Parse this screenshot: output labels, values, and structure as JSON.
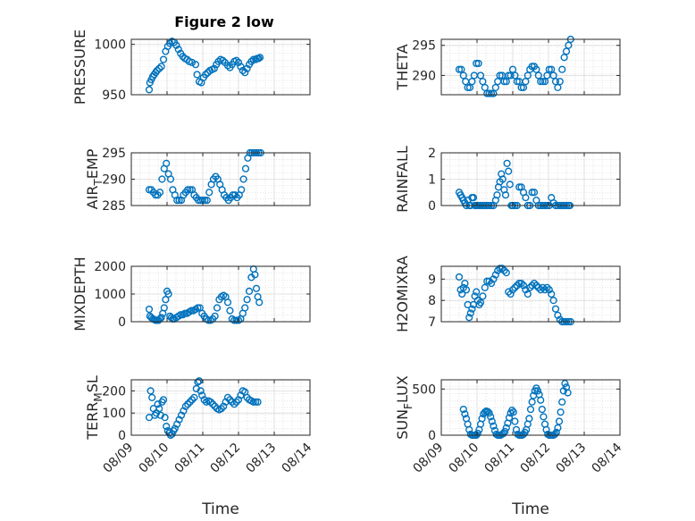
{
  "page": {
    "background": "#ffffff"
  },
  "colors": {
    "marker": "#0072bd",
    "axes": "#262626",
    "grid": "#dcdcdc"
  },
  "chart_data": [
    {
      "id": "pressure",
      "type": "scatter",
      "title": "Figure 2 low",
      "ylabel": "PRESSURE",
      "ylabel_sub": "",
      "ylabel_after": "",
      "xlabel": "",
      "xticks": [],
      "ylim": [
        950,
        1005
      ],
      "yticks": [
        950,
        1000
      ],
      "ytick_labels": [
        "950",
        "1000"
      ],
      "xlim": [
        0,
        5
      ],
      "grid": true,
      "x": [
        0.5,
        0.52,
        0.56,
        0.6,
        0.64,
        0.68,
        0.72,
        0.78,
        0.84,
        0.9,
        0.96,
        1.02,
        1.08,
        1.14,
        1.2,
        1.26,
        1.32,
        1.38,
        1.44,
        1.5,
        1.56,
        1.62,
        1.7,
        1.8,
        1.84,
        1.9,
        1.96,
        2.02,
        2.08,
        2.14,
        2.2,
        2.26,
        2.32,
        2.38,
        2.44,
        2.5,
        2.56,
        2.62,
        2.7,
        2.76,
        2.82,
        2.88,
        2.94,
        3.0,
        3.06,
        3.12,
        3.18,
        3.24,
        3.3,
        3.36,
        3.42,
        3.48,
        3.52,
        3.56,
        3.6
      ],
      "y": [
        955,
        962,
        965,
        968,
        970,
        972,
        974,
        976,
        978,
        985,
        993,
        998,
        1001,
        1003,
        1002,
        999,
        995,
        991,
        988,
        986,
        985,
        983,
        982,
        980,
        970,
        963,
        962,
        967,
        970,
        972,
        974,
        975,
        976,
        980,
        983,
        985,
        984,
        982,
        979,
        977,
        980,
        983,
        984,
        982,
        978,
        974,
        972,
        976,
        980,
        983,
        985,
        985,
        986,
        986,
        987
      ]
    },
    {
      "id": "theta",
      "type": "scatter",
      "ylabel": "THETA",
      "ylabel_sub": "",
      "ylabel_after": "",
      "xlabel": "",
      "xticks": [],
      "ylim": [
        286.8,
        296
      ],
      "yticks": [
        290,
        295
      ],
      "ytick_labels": [
        "290",
        "295"
      ],
      "xlim": [
        0,
        5
      ],
      "grid": true,
      "x": [
        0.5,
        0.56,
        0.62,
        0.68,
        0.74,
        0.8,
        0.86,
        0.92,
        0.98,
        1.04,
        1.1,
        1.16,
        1.22,
        1.28,
        1.34,
        1.4,
        1.46,
        1.52,
        1.58,
        1.64,
        1.7,
        1.76,
        1.82,
        1.88,
        1.94,
        2.0,
        2.06,
        2.12,
        2.18,
        2.24,
        2.3,
        2.36,
        2.42,
        2.48,
        2.54,
        2.6,
        2.66,
        2.72,
        2.78,
        2.84,
        2.9,
        2.96,
        3.02,
        3.08,
        3.14,
        3.2,
        3.26,
        3.32,
        3.38,
        3.44,
        3.5,
        3.56,
        3.62
      ],
      "y": [
        291,
        291,
        290,
        289,
        288,
        288,
        289,
        290,
        292,
        292,
        290,
        289,
        288,
        287,
        287,
        287,
        287,
        288,
        289,
        290,
        290,
        289,
        289,
        290,
        290,
        291,
        290,
        289,
        289,
        288,
        288,
        289,
        290,
        291,
        291.5,
        291.5,
        291,
        290,
        289,
        289,
        289,
        290,
        291,
        291,
        290,
        289,
        288,
        289,
        291,
        293,
        294,
        295,
        296
      ]
    },
    {
      "id": "air_temp",
      "type": "scatter",
      "ylabel": "AIR",
      "ylabel_sub": "T",
      "ylabel_after": "EMP",
      "xlabel": "",
      "xticks": [],
      "ylim": [
        285,
        295
      ],
      "yticks": [
        285,
        290,
        295
      ],
      "ytick_labels": [
        "285",
        "290",
        "295"
      ],
      "xlim": [
        0,
        5
      ],
      "grid": true,
      "x": [
        0.5,
        0.56,
        0.62,
        0.68,
        0.74,
        0.8,
        0.86,
        0.92,
        0.98,
        1.04,
        1.1,
        1.16,
        1.22,
        1.28,
        1.34,
        1.4,
        1.46,
        1.52,
        1.58,
        1.64,
        1.7,
        1.76,
        1.82,
        1.88,
        1.94,
        2.0,
        2.06,
        2.12,
        2.18,
        2.24,
        2.3,
        2.36,
        2.42,
        2.48,
        2.54,
        2.6,
        2.66,
        2.72,
        2.78,
        2.84,
        2.9,
        2.96,
        3.02,
        3.08,
        3.14,
        3.2,
        3.26,
        3.32,
        3.38,
        3.44,
        3.5,
        3.56,
        3.62
      ],
      "y": [
        288,
        288,
        287.5,
        287,
        287,
        287.5,
        290,
        292,
        293,
        291,
        290,
        288,
        287,
        286,
        286,
        286,
        287,
        287.5,
        288,
        288,
        288,
        287,
        286.5,
        286,
        286,
        286,
        286,
        286,
        287.5,
        289,
        290,
        290.5,
        290,
        289,
        288,
        287,
        286.5,
        286,
        286.5,
        287,
        287,
        286.5,
        287,
        288,
        290,
        292,
        294,
        295,
        295,
        295,
        295,
        295,
        295
      ]
    },
    {
      "id": "rainfall",
      "type": "scatter",
      "ylabel": "RAINFALL",
      "ylabel_sub": "",
      "ylabel_after": "",
      "xlabel": "",
      "xticks": [],
      "ylim": [
        0,
        2
      ],
      "yticks": [
        0,
        1,
        2
      ],
      "ytick_labels": [
        "0",
        "1",
        "2"
      ],
      "xlim": [
        0,
        5
      ],
      "grid": true,
      "x": [
        0.5,
        0.54,
        0.58,
        0.62,
        0.66,
        0.7,
        0.74,
        0.78,
        0.82,
        0.86,
        0.9,
        0.94,
        0.98,
        1.02,
        1.06,
        1.1,
        1.16,
        1.22,
        1.28,
        1.34,
        1.4,
        1.46,
        1.52,
        1.56,
        1.6,
        1.64,
        1.68,
        1.72,
        1.76,
        1.8,
        1.84,
        1.88,
        1.92,
        1.96,
        2.0,
        2.06,
        2.12,
        2.18,
        2.24,
        2.3,
        2.36,
        2.42,
        2.48,
        2.54,
        2.6,
        2.66,
        2.72,
        2.78,
        2.84,
        2.9,
        2.96,
        3.02,
        3.08,
        3.14,
        3.2,
        3.26,
        3.32,
        3.38,
        3.44,
        3.5,
        3.56,
        3.6
      ],
      "y": [
        0.5,
        0.4,
        0.3,
        0.2,
        0.1,
        0,
        0.2,
        0,
        0,
        0.3,
        0.3,
        0,
        0,
        0,
        0,
        0,
        0,
        0,
        0,
        0,
        0,
        0,
        0.2,
        0.4,
        0.7,
        0.9,
        1.2,
        1.0,
        0.6,
        0.4,
        1.6,
        1.3,
        0.8,
        0,
        0,
        0,
        0,
        0.7,
        0.7,
        0.5,
        0.3,
        0,
        0,
        0.5,
        0.5,
        0.2,
        0,
        0,
        0,
        0,
        0,
        0,
        0.3,
        0.1,
        0,
        0,
        0,
        0,
        0,
        0,
        0,
        0
      ]
    },
    {
      "id": "mixdepth",
      "type": "scatter",
      "ylabel": "MIXDEPTH",
      "ylabel_sub": "",
      "ylabel_after": "",
      "xlabel": "",
      "xticks": [],
      "ylim": [
        0,
        2000
      ],
      "yticks": [
        0,
        1000,
        2000
      ],
      "ytick_labels": [
        "0",
        "1000",
        "2000"
      ],
      "xlim": [
        0,
        5
      ],
      "grid": true,
      "x": [
        0.5,
        0.52,
        0.56,
        0.6,
        0.64,
        0.68,
        0.72,
        0.76,
        0.8,
        0.84,
        0.88,
        0.92,
        0.96,
        1.0,
        1.04,
        1.08,
        1.12,
        1.16,
        1.2,
        1.26,
        1.32,
        1.38,
        1.44,
        1.5,
        1.56,
        1.62,
        1.68,
        1.74,
        1.8,
        1.86,
        1.92,
        1.98,
        2.04,
        2.1,
        2.16,
        2.22,
        2.28,
        2.34,
        2.4,
        2.46,
        2.52,
        2.58,
        2.64,
        2.7,
        2.76,
        2.82,
        2.88,
        2.94,
        3.0,
        3.06,
        3.12,
        3.18,
        3.24,
        3.3,
        3.36,
        3.42,
        3.46,
        3.5,
        3.54,
        3.58
      ],
      "y": [
        450,
        200,
        150,
        100,
        80,
        50,
        50,
        50,
        100,
        150,
        300,
        500,
        800,
        1100,
        1000,
        200,
        150,
        100,
        100,
        150,
        200,
        250,
        250,
        300,
        300,
        350,
        400,
        400,
        450,
        500,
        500,
        300,
        200,
        100,
        50,
        50,
        100,
        200,
        500,
        800,
        900,
        950,
        900,
        700,
        400,
        100,
        50,
        50,
        50,
        100,
        300,
        500,
        800,
        1100,
        1600,
        1900,
        1700,
        1200,
        900,
        700
      ]
    },
    {
      "id": "h2omixra",
      "type": "scatter",
      "ylabel": "H2OMIXRA",
      "ylabel_sub": "",
      "ylabel_after": "",
      "xlabel": "",
      "xticks": [],
      "ylim": [
        7,
        9.6
      ],
      "yticks": [
        7,
        8,
        9
      ],
      "ytick_labels": [
        "7",
        "8",
        "9"
      ],
      "xlim": [
        0,
        5
      ],
      "grid": true,
      "x": [
        0.5,
        0.54,
        0.58,
        0.62,
        0.66,
        0.7,
        0.74,
        0.78,
        0.82,
        0.86,
        0.9,
        0.94,
        0.98,
        1.02,
        1.06,
        1.1,
        1.16,
        1.22,
        1.28,
        1.34,
        1.4,
        1.46,
        1.52,
        1.58,
        1.64,
        1.7,
        1.76,
        1.82,
        1.88,
        1.94,
        2.0,
        2.06,
        2.12,
        2.18,
        2.24,
        2.3,
        2.36,
        2.42,
        2.48,
        2.54,
        2.6,
        2.66,
        2.72,
        2.78,
        2.84,
        2.9,
        2.96,
        3.02,
        3.08,
        3.14,
        3.2,
        3.26,
        3.32,
        3.38,
        3.44,
        3.5,
        3.56,
        3.62
      ],
      "y": [
        9.1,
        8.5,
        8.3,
        8.6,
        8.8,
        8.5,
        7.8,
        7.2,
        7.4,
        7.6,
        7.8,
        8.2,
        8.4,
        8.0,
        7.8,
        7.9,
        8.2,
        8.6,
        8.9,
        8.9,
        8.8,
        9.0,
        9.2,
        9.4,
        9.5,
        9.5,
        9.4,
        9.3,
        8.4,
        8.3,
        8.5,
        8.6,
        8.7,
        8.8,
        8.8,
        8.7,
        8.5,
        8.3,
        8.6,
        8.7,
        8.8,
        8.7,
        8.6,
        8.5,
        8.6,
        8.5,
        8.6,
        8.5,
        8.3,
        8.0,
        7.6,
        7.3,
        7.1,
        7.0,
        7.0,
        7.0,
        7.0,
        7.0
      ]
    },
    {
      "id": "terr_msl",
      "type": "scatter",
      "ylabel": "TERR",
      "ylabel_sub": "M",
      "ylabel_after": "SL",
      "xlabel": "Time",
      "xticks": [
        0,
        1,
        2,
        3,
        4,
        5
      ],
      "xtick_labels": [
        "08/09",
        "08/10",
        "08/11",
        "08/12",
        "08/13",
        "08/14"
      ],
      "ylim": [
        0,
        250
      ],
      "yticks": [
        0,
        100,
        200
      ],
      "ytick_labels": [
        "0",
        "100",
        "200"
      ],
      "xlim": [
        0,
        5
      ],
      "grid": true,
      "x": [
        0.5,
        0.54,
        0.58,
        0.62,
        0.66,
        0.7,
        0.74,
        0.78,
        0.82,
        0.86,
        0.9,
        0.94,
        0.98,
        1.02,
        1.06,
        1.1,
        1.14,
        1.18,
        1.22,
        1.28,
        1.34,
        1.4,
        1.46,
        1.52,
        1.58,
        1.64,
        1.7,
        1.76,
        1.82,
        1.86,
        1.9,
        1.94,
        1.98,
        2.04,
        2.1,
        2.16,
        2.22,
        2.28,
        2.34,
        2.4,
        2.46,
        2.52,
        2.58,
        2.64,
        2.7,
        2.76,
        2.82,
        2.88,
        2.94,
        3.0,
        3.06,
        3.12,
        3.18,
        3.24,
        3.3,
        3.36,
        3.42,
        3.48,
        3.54
      ],
      "y": [
        80,
        200,
        170,
        120,
        90,
        100,
        140,
        120,
        90,
        150,
        160,
        80,
        40,
        20,
        10,
        0,
        5,
        20,
        30,
        50,
        70,
        90,
        110,
        130,
        140,
        150,
        160,
        170,
        210,
        240,
        245,
        200,
        180,
        160,
        150,
        155,
        150,
        140,
        130,
        120,
        115,
        120,
        130,
        150,
        170,
        160,
        150,
        140,
        150,
        160,
        180,
        200,
        195,
        170,
        160,
        155,
        150,
        150,
        150
      ]
    },
    {
      "id": "sun_flux",
      "type": "scatter",
      "ylabel": "SUN",
      "ylabel_sub": "F",
      "ylabel_after": "LUX",
      "xlabel": "Time",
      "xticks": [
        0,
        1,
        2,
        3,
        4,
        5
      ],
      "xtick_labels": [
        "08/09",
        "08/10",
        "08/11",
        "08/12",
        "08/13",
        "08/14"
      ],
      "ylim": [
        0,
        600
      ],
      "yticks": [
        0,
        500
      ],
      "ytick_labels": [
        "0",
        "500"
      ],
      "xlim": [
        0,
        5
      ],
      "grid": true,
      "x": [
        0.62,
        0.66,
        0.7,
        0.74,
        0.78,
        0.82,
        0.86,
        0.9,
        0.94,
        0.98,
        1.02,
        1.06,
        1.1,
        1.14,
        1.18,
        1.22,
        1.26,
        1.3,
        1.34,
        1.38,
        1.42,
        1.46,
        1.5,
        1.54,
        1.58,
        1.62,
        1.66,
        1.7,
        1.74,
        1.78,
        1.82,
        1.86,
        1.9,
        1.94,
        1.98,
        2.02,
        2.06,
        2.1,
        2.14,
        2.18,
        2.22,
        2.26,
        2.3,
        2.34,
        2.38,
        2.42,
        2.46,
        2.5,
        2.54,
        2.58,
        2.62,
        2.66,
        2.7,
        2.74,
        2.78,
        2.82,
        2.86,
        2.9,
        2.94,
        2.98,
        3.02,
        3.06,
        3.1,
        3.14,
        3.18,
        3.22,
        3.26,
        3.3,
        3.34,
        3.38,
        3.42,
        3.46,
        3.5,
        3.54
      ],
      "y": [
        280,
        230,
        180,
        120,
        60,
        10,
        0,
        0,
        0,
        0,
        20,
        60,
        120,
        180,
        230,
        250,
        260,
        255,
        240,
        200,
        150,
        100,
        50,
        10,
        0,
        0,
        0,
        10,
        20,
        40,
        80,
        130,
        190,
        240,
        270,
        250,
        150,
        60,
        10,
        0,
        0,
        0,
        10,
        30,
        60,
        120,
        180,
        280,
        360,
        430,
        480,
        510,
        480,
        440,
        380,
        280,
        200,
        120,
        60,
        10,
        0,
        0,
        0,
        0,
        10,
        30,
        80,
        150,
        250,
        360,
        480,
        560,
        520,
        460
      ]
    }
  ]
}
